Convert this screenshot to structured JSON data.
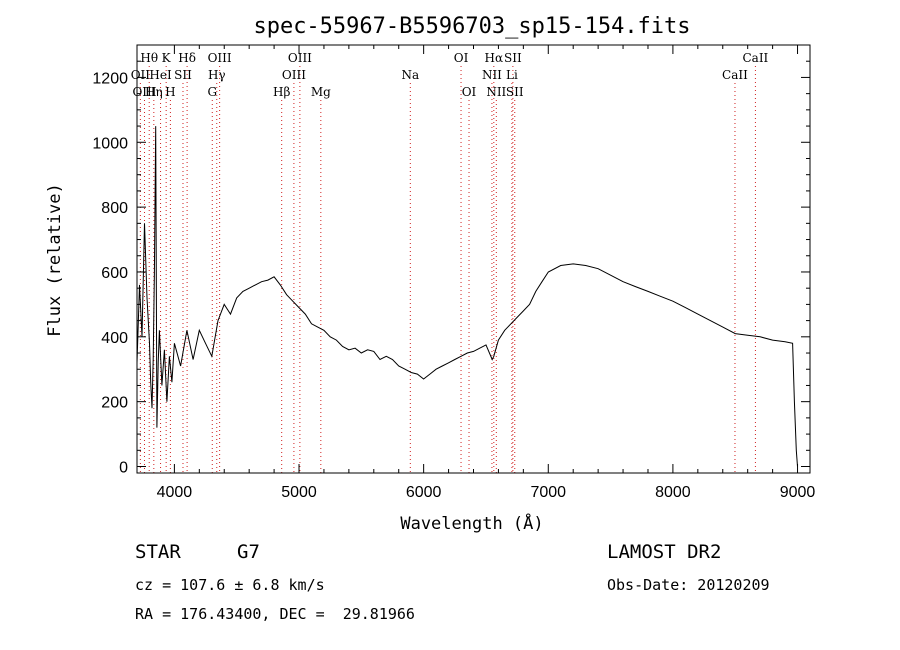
{
  "chart_data": {
    "type": "line",
    "title": "spec-55967-B5596703_sp15-154.fits",
    "xlabel": "Wavelength (Å)",
    "ylabel": "Flux (relative)",
    "xlim": [
      3700,
      9100
    ],
    "ylim": [
      -20,
      1300
    ],
    "xticks": [
      4000,
      5000,
      6000,
      7000,
      8000,
      9000
    ],
    "yticks": [
      0,
      200,
      400,
      600,
      800,
      1000,
      1200
    ],
    "grid": false,
    "series": [
      {
        "color": "#000000",
        "x": [
          3700,
          3720,
          3740,
          3760,
          3780,
          3800,
          3810,
          3820,
          3830,
          3840,
          3850,
          3860,
          3870,
          3880,
          3900,
          3920,
          3940,
          3960,
          3980,
          4000,
          4050,
          4100,
          4150,
          4200,
          4250,
          4300,
          4350,
          4400,
          4450,
          4500,
          4550,
          4600,
          4650,
          4700,
          4750,
          4800,
          4850,
          4900,
          4950,
          5000,
          5050,
          5100,
          5150,
          5200,
          5250,
          5300,
          5350,
          5400,
          5450,
          5500,
          5550,
          5600,
          5650,
          5700,
          5750,
          5800,
          5850,
          5900,
          5950,
          6000,
          6050,
          6100,
          6150,
          6200,
          6250,
          6300,
          6350,
          6400,
          6450,
          6500,
          6550,
          6563,
          6600,
          6650,
          6700,
          6750,
          6800,
          6850,
          6900,
          6950,
          7000,
          7100,
          7200,
          7300,
          7400,
          7500,
          7600,
          7700,
          7800,
          7900,
          8000,
          8100,
          8200,
          8300,
          8400,
          8500,
          8600,
          8700,
          8800,
          8900,
          8960,
          8975,
          8990,
          9000
        ],
        "y": [
          320,
          560,
          400,
          750,
          520,
          380,
          260,
          180,
          330,
          600,
          1050,
          120,
          320,
          420,
          250,
          360,
          200,
          340,
          260,
          380,
          310,
          420,
          330,
          420,
          380,
          340,
          450,
          500,
          470,
          520,
          540,
          550,
          560,
          570,
          575,
          585,
          560,
          530,
          510,
          490,
          470,
          440,
          430,
          420,
          400,
          390,
          370,
          360,
          365,
          350,
          360,
          355,
          330,
          340,
          330,
          310,
          300,
          290,
          285,
          270,
          285,
          300,
          310,
          320,
          330,
          340,
          350,
          355,
          365,
          375,
          330,
          340,
          390,
          420,
          440,
          460,
          480,
          500,
          540,
          570,
          600,
          620,
          625,
          620,
          610,
          590,
          570,
          555,
          540,
          525,
          510,
          490,
          470,
          450,
          430,
          410,
          405,
          400,
          390,
          385,
          380,
          200,
          50,
          0
        ]
      }
    ],
    "lines": [
      {
        "label": "Hθ",
        "x": 3798,
        "row": 1
      },
      {
        "label": "OII",
        "x": 3727,
        "row": 2
      },
      {
        "label": "OIII",
        "x": 3760,
        "row": 3
      },
      {
        "label": "Hη",
        "x": 3835,
        "row": 3
      },
      {
        "label": "HeI",
        "x": 3889,
        "row": 2
      },
      {
        "label": "K",
        "x": 3934,
        "row": 1
      },
      {
        "label": "H",
        "x": 3968,
        "row": 3
      },
      {
        "label": "SII",
        "x": 4069,
        "row": 2
      },
      {
        "label": "Hδ",
        "x": 4102,
        "row": 1
      },
      {
        "label": "G",
        "x": 4304,
        "row": 3
      },
      {
        "label": "Hγ",
        "x": 4340,
        "row": 2
      },
      {
        "label": "OIII",
        "x": 4363,
        "row": 1
      },
      {
        "label": "Hβ",
        "x": 4861,
        "row": 3
      },
      {
        "label": "OIII",
        "x": 4959,
        "row": 2
      },
      {
        "label": "OIII",
        "x": 5007,
        "row": 1
      },
      {
        "label": "Mg",
        "x": 5175,
        "row": 3
      },
      {
        "label": "Na",
        "x": 5893,
        "row": 2
      },
      {
        "label": "OI",
        "x": 6300,
        "row": 1
      },
      {
        "label": "OI",
        "x": 6364,
        "row": 3
      },
      {
        "label": "NII",
        "x": 6548,
        "row": 2
      },
      {
        "label": "Hα",
        "x": 6563,
        "row": 1
      },
      {
        "label": "NII",
        "x": 6583,
        "row": 3
      },
      {
        "label": "Li",
        "x": 6708,
        "row": 2
      },
      {
        "label": "SII",
        "x": 6716,
        "row": 1
      },
      {
        "label": "SII",
        "x": 6731,
        "row": 3
      },
      {
        "label": "CaII",
        "x": 8498,
        "row": 2
      },
      {
        "label": "CaII",
        "x": 8662,
        "row": 1
      }
    ]
  },
  "info": {
    "object_class": "STAR",
    "subclass": "G7",
    "survey": "LAMOST DR2",
    "cz": "cz = 107.6 ± 6.8 km/s",
    "obs_date": "Obs-Date: 20120209",
    "coords": "RA = 176.43400, DEC =  29.81966"
  }
}
